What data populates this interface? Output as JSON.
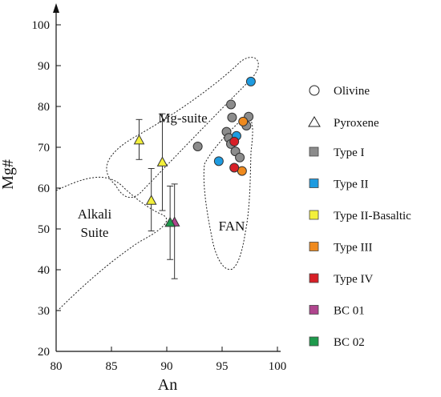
{
  "chart_data": {
    "type": "scatter",
    "xlabel": "An",
    "ylabel": "Mg#",
    "xlim": [
      80,
      100
    ],
    "ylim": [
      20,
      100
    ],
    "xticks": [
      "80",
      "85",
      "90",
      "95",
      "100"
    ],
    "yticks": [
      "20",
      "30",
      "40",
      "50",
      "60",
      "70",
      "80",
      "90",
      "100"
    ],
    "grid": false,
    "legend_position": "right",
    "regions": [
      {
        "label": "Mg-suite"
      },
      {
        "label": "Alkali Suite",
        "lines": [
          "Alkali",
          "Suite"
        ]
      },
      {
        "label": "FAN"
      }
    ],
    "legend": {
      "markers": [
        {
          "label": "Olivine",
          "shape": "circle"
        },
        {
          "label": "Pyroxene",
          "shape": "triangle"
        }
      ],
      "types": [
        {
          "label": "Type I",
          "color": "#8c8c8c"
        },
        {
          "label": "Type II",
          "color": "#1e9be0"
        },
        {
          "label": "Type II-Basaltic",
          "color": "#f3f03a"
        },
        {
          "label": "Type III",
          "color": "#ef8a1e"
        },
        {
          "label": "Type IV",
          "color": "#d81f26"
        },
        {
          "label": "BC 01",
          "color": "#b0458e"
        },
        {
          "label": "BC 02",
          "color": "#1e9a4c"
        }
      ]
    },
    "series": [
      {
        "name": "Type I",
        "color": "#8c8c8c",
        "marker": "circle",
        "points": [
          [
            92.8,
            70.2
          ],
          [
            95.8,
            80.5
          ],
          [
            95.9,
            77.3
          ],
          [
            97.4,
            77.5
          ],
          [
            97.2,
            75.3
          ],
          [
            95.4,
            73.8
          ],
          [
            95.6,
            72.3
          ],
          [
            95.8,
            70.8
          ],
          [
            96.2,
            69.0
          ],
          [
            96.6,
            67.5
          ]
        ]
      },
      {
        "name": "Type II",
        "color": "#1e9be0",
        "marker": "circle",
        "points": [
          [
            97.6,
            86.1
          ],
          [
            96.3,
            72.8
          ],
          [
            94.7,
            66.6
          ]
        ]
      },
      {
        "name": "Type III",
        "color": "#ef8a1e",
        "marker": "circle",
        "points": [
          [
            96.9,
            76.3
          ],
          [
            96.8,
            64.2
          ]
        ]
      },
      {
        "name": "Type IV",
        "color": "#d81f26",
        "marker": "circle",
        "points": [
          [
            96.1,
            71.4
          ],
          [
            96.1,
            65.0
          ]
        ]
      },
      {
        "name": "Type II-Basaltic",
        "color": "#f3f03a",
        "marker": "triangle",
        "points": [
          [
            87.5,
            71.8,
            67.0,
            76.8
          ],
          [
            88.6,
            57.0,
            49.5,
            64.8
          ],
          [
            89.6,
            66.4,
            54.5,
            78.2
          ]
        ]
      },
      {
        "name": "BC 01",
        "color": "#b0458e",
        "marker": "triangle",
        "points": [
          [
            90.7,
            51.7,
            37.8,
            61.0
          ]
        ]
      },
      {
        "name": "BC 02",
        "color": "#1e9a4c",
        "marker": "triangle",
        "points": [
          [
            90.3,
            51.6,
            42.5,
            60.5
          ]
        ]
      }
    ]
  }
}
